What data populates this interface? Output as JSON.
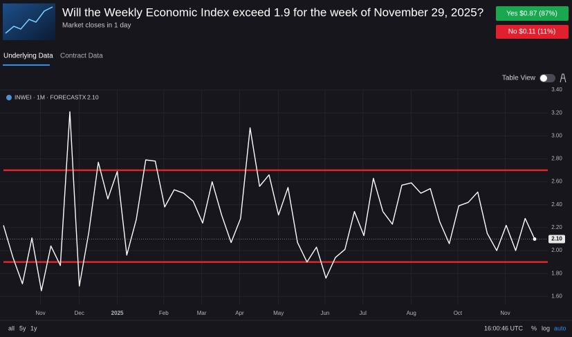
{
  "header": {
    "title": "Will the Weekly Economic Index exceed 1.9 for the week of November 29, 2025?",
    "subtitle": "Market closes in 1 day",
    "yes_button": "Yes $0.87 (87%)",
    "no_button": "No $0.11 (11%)"
  },
  "tabs": [
    "Underlying Data",
    "Contract Data"
  ],
  "table_view_label": "Table View",
  "chart_data": {
    "type": "line",
    "legend": "INWEI · 1M · FORECASTX",
    "last_value_label": "2.10",
    "color": "#ffffff",
    "values": [
      2.22,
      1.94,
      1.71,
      2.11,
      1.65,
      2.04,
      1.87,
      3.21,
      1.69,
      2.16,
      2.77,
      2.45,
      2.69,
      1.96,
      2.27,
      2.79,
      2.78,
      2.38,
      2.53,
      2.5,
      2.43,
      2.24,
      2.6,
      2.31,
      2.07,
      2.28,
      3.07,
      2.56,
      2.66,
      2.31,
      2.55,
      2.07,
      1.9,
      2.03,
      1.76,
      1.94,
      2.01,
      2.34,
      2.13,
      2.63,
      2.34,
      2.23,
      2.57,
      2.59,
      2.5,
      2.54,
      2.25,
      2.06,
      2.39,
      2.42,
      2.51,
      2.15,
      2.0,
      2.22,
      2.0,
      2.28,
      2.1
    ],
    "xlim": [
      0,
      56
    ],
    "xticks": [
      {
        "value": 3.9,
        "label": "Nov"
      },
      {
        "value": 8,
        "label": "Dec"
      },
      {
        "value": 12,
        "label": "2025"
      },
      {
        "value": 16.9,
        "label": "Feb"
      },
      {
        "value": 20.9,
        "label": "Mar"
      },
      {
        "value": 24.9,
        "label": "Apr"
      },
      {
        "value": 29,
        "label": "May"
      },
      {
        "value": 33.9,
        "label": "Jun"
      },
      {
        "value": 37.9,
        "label": "Jul"
      },
      {
        "value": 43,
        "label": "Aug"
      },
      {
        "value": 47.9,
        "label": "Oct"
      },
      {
        "value": 52.9,
        "label": "Nov"
      }
    ],
    "ylim": [
      1.53,
      3.4
    ],
    "yticks": [
      {
        "value": 1.6,
        "label": "1.60"
      },
      {
        "value": 1.8,
        "label": "1.80"
      },
      {
        "value": 2.0,
        "label": "2.00"
      },
      {
        "value": 2.2,
        "label": "2.20"
      },
      {
        "value": 2.4,
        "label": "2.40"
      },
      {
        "value": 2.6,
        "label": "2.60"
      },
      {
        "value": 2.8,
        "label": "2.80"
      },
      {
        "value": 3.0,
        "label": "3.00"
      },
      {
        "value": 3.2,
        "label": "3.20"
      },
      {
        "value": 3.4,
        "label": "3.40"
      }
    ],
    "reference_lines": [
      {
        "value": 2.7,
        "color": "#e0262b"
      },
      {
        "value": 1.9,
        "color": "#e0262b"
      }
    ],
    "grid": true
  },
  "range_buttons": [
    "all",
    "5y",
    "1y"
  ],
  "footer": {
    "time": "16:00:46 UTC",
    "percent": "%",
    "log": "log",
    "auto": "auto"
  }
}
